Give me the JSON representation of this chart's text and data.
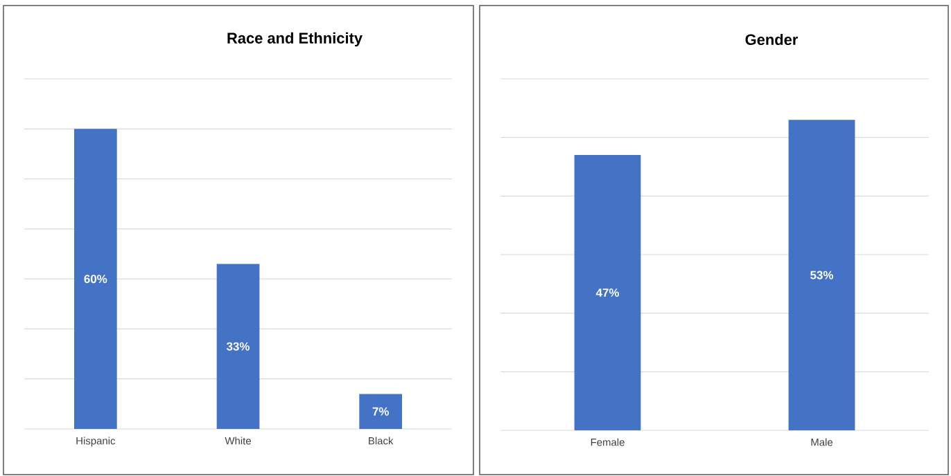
{
  "chart_data": [
    {
      "type": "bar",
      "title": "Race and Ethnicity",
      "categories": [
        "Hispanic",
        "White",
        "Black"
      ],
      "values": [
        60,
        33,
        7
      ],
      "value_labels": [
        "60%",
        "33%",
        "7%"
      ],
      "color": "#4472c4",
      "ylim": [
        0,
        70
      ],
      "yticks": [
        {
          "value": 0,
          "label": null
        },
        {
          "value": 10,
          "label": null
        },
        {
          "value": 20,
          "label": null
        },
        {
          "value": 30,
          "label": null
        },
        {
          "value": 40,
          "label": null
        },
        {
          "value": 50,
          "label": null
        },
        {
          "value": 60,
          "label": null
        },
        {
          "value": 70,
          "label": null
        }
      ],
      "grid": "y",
      "tick_labels": "x"
    },
    {
      "type": "bar",
      "title": "Gender",
      "categories": [
        "Female",
        "Male"
      ],
      "values": [
        47,
        53
      ],
      "value_labels": [
        "47%",
        "53%"
      ],
      "color": "#4472c4",
      "ylim": [
        0,
        60
      ],
      "yticks": [
        {
          "value": 0,
          "label": null
        },
        {
          "value": 10,
          "label": null
        },
        {
          "value": 20,
          "label": null
        },
        {
          "value": 30,
          "label": null
        },
        {
          "value": 40,
          "label": null
        },
        {
          "value": 50,
          "label": null
        },
        {
          "value": 60,
          "label": null
        }
      ],
      "grid": "y",
      "tick_labels": "x"
    }
  ]
}
